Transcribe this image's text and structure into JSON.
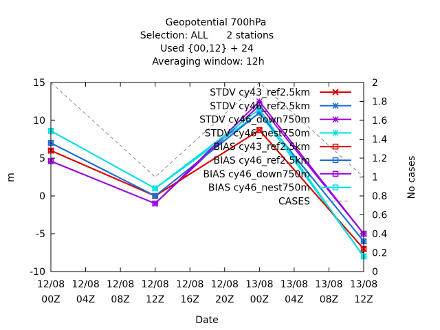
{
  "chart_data": {
    "type": "line",
    "title_lines": [
      "Geopotential 700hPa",
      "Selection: ALL      2 stations",
      "Used {00,12} + 24",
      "Averaging window: 12h"
    ],
    "xlabel": "Date",
    "ylabel": "m",
    "y2label": "No cases",
    "x_ticks": [
      {
        "line1": "12/08",
        "line2": "00Z"
      },
      {
        "line1": "12/08",
        "line2": "04Z"
      },
      {
        "line1": "12/08",
        "line2": "08Z"
      },
      {
        "line1": "12/08",
        "line2": "12Z"
      },
      {
        "line1": "12/08",
        "line2": "16Z"
      },
      {
        "line1": "12/08",
        "line2": "20Z"
      },
      {
        "line1": "13/08",
        "line2": "00Z"
      },
      {
        "line1": "13/08",
        "line2": "04Z"
      },
      {
        "line1": "13/08",
        "line2": "08Z"
      },
      {
        "line1": "13/08",
        "line2": "12Z"
      }
    ],
    "xlim_hours": [
      0,
      36
    ],
    "ylim": [
      -10,
      15
    ],
    "y_ticks": [
      -10,
      -5,
      0,
      5,
      10,
      15
    ],
    "y2lim": [
      0,
      2
    ],
    "y2_ticks": [
      "0",
      "0.2",
      "0.4",
      "0.6",
      "0.8",
      "1",
      "1.2",
      "1.4",
      "1.6",
      "1.8",
      "2"
    ],
    "legend_position": "top-right",
    "series": [
      {
        "name": "STDV cy43_ref2.5km",
        "color": "#e00000",
        "marker": "x",
        "axis": "y",
        "x_hours": [
          0,
          12,
          24,
          36
        ],
        "values": [
          6.0,
          0.0,
          8.7,
          -7.0
        ]
      },
      {
        "name": "STDV cy46_ref2.5km",
        "color": "#1a6fd6",
        "marker": "star",
        "axis": "y",
        "x_hours": [
          0,
          12,
          24,
          36
        ],
        "values": [
          7.0,
          0.0,
          11.0,
          -6.0
        ]
      },
      {
        "name": "STDV cy46_down750m",
        "color": "#9a00e0",
        "marker": "star",
        "axis": "y",
        "x_hours": [
          0,
          12,
          24,
          36
        ],
        "values": [
          4.6,
          -1.0,
          12.5,
          -5.0
        ]
      },
      {
        "name": "STDV cy46_nest750m",
        "color": "#00e0e0",
        "marker": "star",
        "axis": "y",
        "x_hours": [
          0,
          12,
          24,
          36
        ],
        "values": [
          8.6,
          1.0,
          11.5,
          -8.0
        ]
      },
      {
        "name": "BIAS cy43_ref2.5km",
        "color": "#e00000",
        "marker": "square",
        "axis": "y",
        "x_hours": [
          0,
          12,
          24,
          36
        ],
        "values": [
          6.0,
          0.0,
          8.7,
          -7.0
        ]
      },
      {
        "name": "BIAS cy46_ref2.5km",
        "color": "#1a6fd6",
        "marker": "square",
        "axis": "y",
        "x_hours": [
          0,
          12,
          24,
          36
        ],
        "values": [
          7.0,
          0.0,
          11.0,
          -6.0
        ]
      },
      {
        "name": "BIAS cy46_down750m",
        "color": "#9a00e0",
        "marker": "square",
        "axis": "y",
        "x_hours": [
          0,
          12,
          24,
          36
        ],
        "values": [
          4.6,
          -1.0,
          12.0,
          -5.0
        ]
      },
      {
        "name": "BIAS cy46_nest750m",
        "color": "#00e0e0",
        "marker": "square",
        "axis": "y",
        "x_hours": [
          0,
          12,
          24,
          36
        ],
        "values": [
          8.6,
          1.0,
          11.0,
          -8.0
        ]
      },
      {
        "name": "CASES",
        "color": "#888888",
        "marker": "none",
        "dashed": true,
        "axis": "y2",
        "x_hours": [
          0,
          12,
          24,
          36
        ],
        "values": [
          2.0,
          1.0,
          2.0,
          1.0
        ]
      }
    ]
  }
}
